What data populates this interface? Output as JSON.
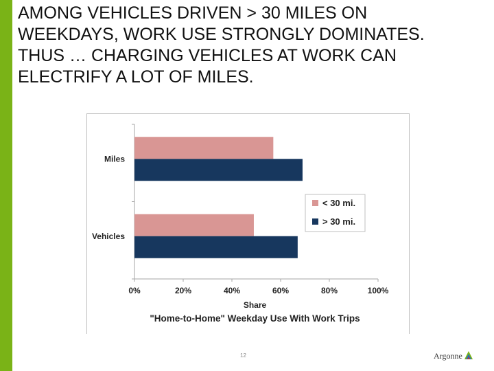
{
  "slide": {
    "title_lines": [
      "AMONG VEHICLES DRIVEN > 30 MILES ON",
      "WEEKDAYS, WORK USE STRONGLY DOMINATES.",
      "THUS … CHARGING VEHICLES AT WORK CAN",
      "ELECTRIFY A LOT OF MILES."
    ],
    "page_number": "12",
    "logo_text": "Argonne",
    "accent_color": "#7ab317"
  },
  "chart_data": {
    "type": "bar",
    "orientation": "horizontal",
    "categories": [
      "Miles",
      "Vehicles"
    ],
    "series": [
      {
        "name": "< 30 mi.",
        "color": "#d99694",
        "values": [
          57,
          49
        ]
      },
      {
        "name": "> 30 mi.",
        "color": "#17375e",
        "values": [
          69,
          67
        ]
      }
    ],
    "xlim": [
      0,
      100
    ],
    "x_ticks": [
      "0%",
      "20%",
      "40%",
      "60%",
      "80%",
      "100%"
    ],
    "xlabel": "Share",
    "title": "\"Home-to-Home\" Weekday Use With Work Trips",
    "legend_position": "right",
    "grid": false
  }
}
